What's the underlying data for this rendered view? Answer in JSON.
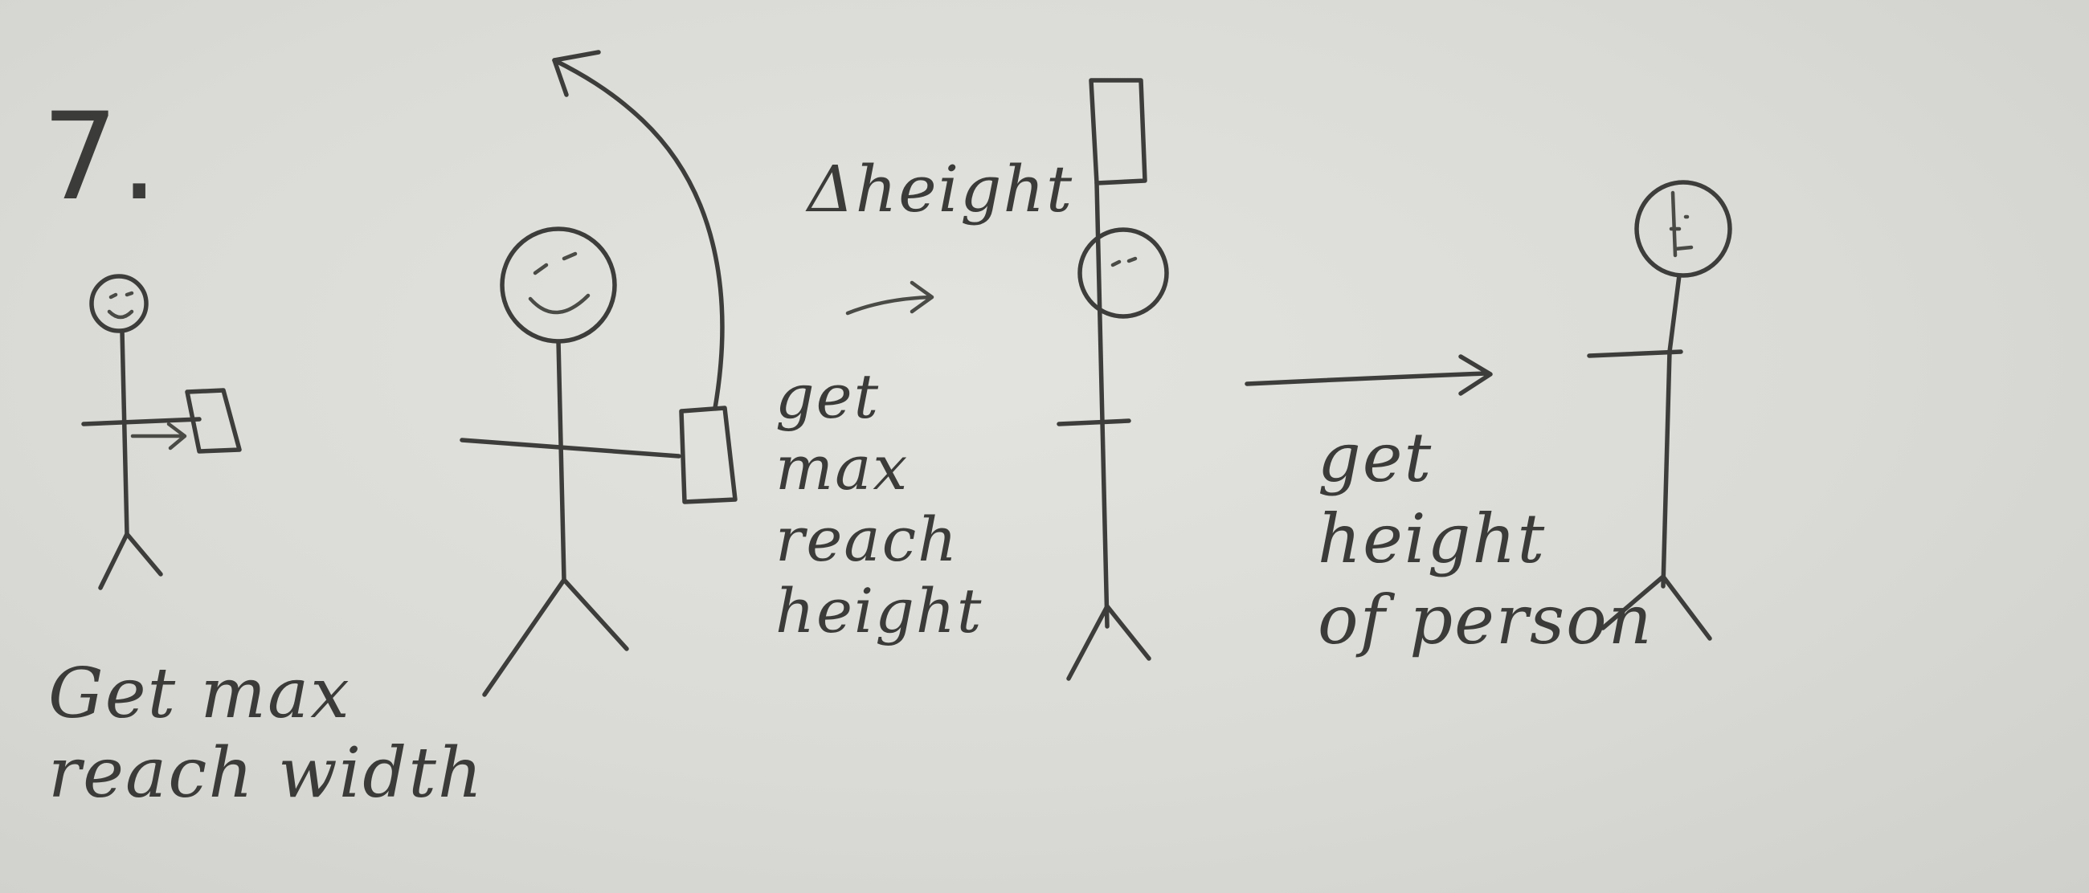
{
  "step_number": "7.",
  "panels": {
    "reach_width": {
      "caption_line1": "Get max",
      "caption_line2": "reach width"
    },
    "arm_raise": {},
    "delta_height": {
      "label": "Δheight",
      "caption_line1": "get",
      "caption_line2": "max",
      "caption_line3": "reach",
      "caption_line4": "height"
    },
    "person_height": {
      "caption_line1": "get",
      "caption_line2": "height",
      "caption_line3": "of person"
    }
  },
  "colors": {
    "paper": "#dcdcd8",
    "pencil": "#3d3d3b"
  }
}
